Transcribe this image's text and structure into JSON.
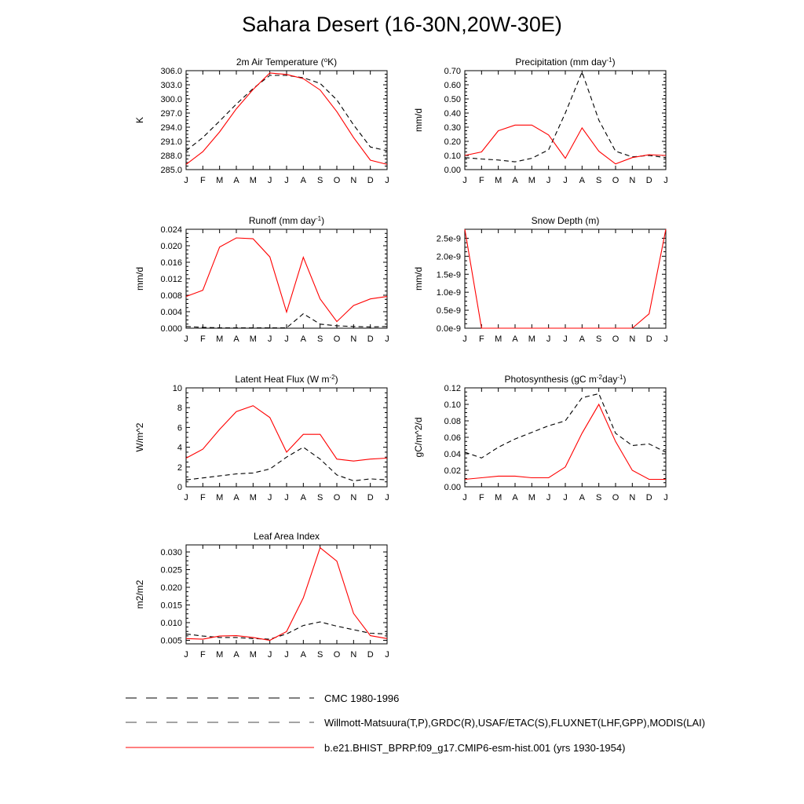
{
  "title": "Sahara Desert (16-30N,20W-30E)",
  "months": [
    "J",
    "F",
    "M",
    "A",
    "M",
    "J",
    "J",
    "A",
    "S",
    "O",
    "N",
    "D",
    "J"
  ],
  "colors": {
    "model": "#ff0000",
    "obs": "#000000",
    "obs2": "#4a4a4a"
  },
  "legend": [
    {
      "label": "CMC 1980-1996",
      "style": "dashed",
      "color": "#000000"
    },
    {
      "label": "Willmott-Matsuura(T,P),GRDC(R),USAF/ETAC(S),FLUXNET(LHF,GPP),MODIS(LAI)",
      "style": "dashed",
      "color": "#4a4a4a"
    },
    {
      "label": "b.e21.BHIST_BPRP.f09_g17.CMIP6-esm-hist.001 (yrs 1930-1954)",
      "style": "solid",
      "color": "#ff0000"
    }
  ],
  "chart_data": [
    {
      "type": "line",
      "title": "2m Air Temperature (°K)",
      "title_main": "2m Air Temperature (",
      "title_sup": "o",
      "title_end": "K)",
      "ylabel": "K",
      "ylim": [
        285,
        306
      ],
      "yticks": [
        "285.0",
        "288.0",
        "291.0",
        "294.0",
        "297.0",
        "300.0",
        "303.0",
        "306.0"
      ],
      "yvals": [
        285,
        288,
        291,
        294,
        297,
        300,
        303,
        306
      ],
      "series": [
        {
          "style": "dashed",
          "color": "#000000",
          "values": [
            289.0,
            291.8,
            295.3,
            298.9,
            302.2,
            305.0,
            305.0,
            304.5,
            303.3,
            299.8,
            294.5,
            289.8,
            289.0
          ]
        },
        {
          "style": "solid",
          "color": "#ff0000",
          "values": [
            286.1,
            288.8,
            293.0,
            297.9,
            302.0,
            305.5,
            305.2,
            304.3,
            301.9,
            297.3,
            291.8,
            287.0,
            286.1
          ]
        }
      ]
    },
    {
      "type": "line",
      "title": "Precipitation (mm day-1)",
      "title_main": "Precipitation (mm day",
      "title_sup": "-1",
      "title_end": ")",
      "ylabel": "mm/d",
      "ylim": [
        0,
        0.7
      ],
      "yticks": [
        "0.00",
        "0.10",
        "0.20",
        "0.30",
        "0.40",
        "0.50",
        "0.60",
        "0.70"
      ],
      "yvals": [
        0,
        0.1,
        0.2,
        0.3,
        0.4,
        0.5,
        0.6,
        0.7
      ],
      "series": [
        {
          "style": "dashed",
          "color": "#000000",
          "values": [
            0.085,
            0.075,
            0.068,
            0.055,
            0.08,
            0.14,
            0.4,
            0.69,
            0.35,
            0.13,
            0.09,
            0.1,
            0.085
          ]
        },
        {
          "style": "solid",
          "color": "#ff0000",
          "values": [
            0.1,
            0.125,
            0.275,
            0.315,
            0.315,
            0.245,
            0.08,
            0.295,
            0.13,
            0.04,
            0.085,
            0.105,
            0.1
          ]
        }
      ]
    },
    {
      "type": "line",
      "title": "Runoff (mm day-1)",
      "title_main": "Runoff (mm day",
      "title_sup": "-1",
      "title_end": ")",
      "ylabel": "mm/d",
      "ylim": [
        0,
        0.024
      ],
      "yticks": [
        "0.000",
        "0.004",
        "0.008",
        "0.012",
        "0.016",
        "0.020",
        "0.024"
      ],
      "yvals": [
        0,
        0.004,
        0.008,
        0.012,
        0.016,
        0.02,
        0.024
      ],
      "series": [
        {
          "style": "dashed",
          "color": "#000000",
          "values": [
            0.0004,
            0.0002,
            0.0001,
            0.0001,
            0.0001,
            0.0001,
            0.0001,
            0.0035,
            0.001,
            0.0006,
            0.0004,
            0.0003,
            0.0004
          ]
        },
        {
          "style": "solid",
          "color": "#ff0000",
          "values": [
            0.0077,
            0.0092,
            0.0197,
            0.0219,
            0.0217,
            0.0173,
            0.0039,
            0.0172,
            0.0071,
            0.0016,
            0.0055,
            0.0071,
            0.0077
          ]
        }
      ]
    },
    {
      "type": "line",
      "title": "Snow Depth (m)",
      "title_main": "Snow Depth (m)",
      "title_sup": "",
      "title_end": "",
      "ylabel": "mm/d",
      "ylim": [
        0,
        2.75e-09
      ],
      "yticks": [
        "0.0e-9",
        "0.5e-9",
        "1.0e-9",
        "1.5e-9",
        "2.0e-9",
        "2.5e-9"
      ],
      "yvals": [
        0,
        5e-10,
        1e-09,
        1.5e-09,
        2e-09,
        2.5e-09
      ],
      "series": [
        {
          "style": "dashed",
          "color": "#000000",
          "values": [
            0,
            0,
            0,
            0,
            0,
            0,
            0,
            0,
            0,
            0,
            0,
            0,
            0
          ]
        },
        {
          "style": "solid",
          "color": "#ff0000",
          "values": [
            2.75e-09,
            0,
            0,
            0,
            0,
            0,
            0,
            0,
            0,
            0,
            0,
            4e-10,
            2.75e-09
          ]
        }
      ]
    },
    {
      "type": "line",
      "title": "Latent Heat Flux (W m-2)",
      "title_main": "Latent Heat Flux (W m",
      "title_sup": "-2",
      "title_end": ")",
      "ylabel": "W/m^2",
      "ylim": [
        0,
        10
      ],
      "yticks": [
        "0",
        "2",
        "4",
        "6",
        "8",
        "10"
      ],
      "yvals": [
        0,
        2,
        4,
        6,
        8,
        10
      ],
      "series": [
        {
          "style": "dashed",
          "color": "#000000",
          "values": [
            0.7,
            0.9,
            1.1,
            1.3,
            1.4,
            1.8,
            3.0,
            4.0,
            2.8,
            1.2,
            0.6,
            0.8,
            0.7
          ]
        },
        {
          "style": "solid",
          "color": "#ff0000",
          "values": [
            2.9,
            3.8,
            5.8,
            7.6,
            8.2,
            7.0,
            3.5,
            5.3,
            5.3,
            2.8,
            2.6,
            2.8,
            2.9
          ]
        }
      ]
    },
    {
      "type": "line",
      "title": "Photosynthesis (gC m-2day-1)",
      "title_main": "Photosynthesis (gC m",
      "title_sup": "-2",
      "title_end": "day",
      "title_sup2": "-1",
      "title_end2": ")",
      "ylabel": "gC/m^2/d",
      "ylim": [
        0,
        0.12
      ],
      "yticks": [
        "0.00",
        "0.02",
        "0.04",
        "0.06",
        "0.08",
        "0.10",
        "0.12"
      ],
      "yvals": [
        0,
        0.02,
        0.04,
        0.06,
        0.08,
        0.1,
        0.12
      ],
      "series": [
        {
          "style": "dashed",
          "color": "#000000",
          "values": [
            0.042,
            0.035,
            0.048,
            0.058,
            0.066,
            0.074,
            0.08,
            0.108,
            0.113,
            0.065,
            0.05,
            0.052,
            0.042
          ]
        },
        {
          "style": "solid",
          "color": "#ff0000",
          "values": [
            0.009,
            0.011,
            0.013,
            0.013,
            0.011,
            0.011,
            0.024,
            0.065,
            0.1,
            0.055,
            0.02,
            0.009,
            0.009
          ]
        }
      ]
    },
    {
      "type": "line",
      "title": "Leaf Area Index",
      "title_main": "Leaf Area Index",
      "title_sup": "",
      "title_end": "",
      "ylabel": "m2/m2",
      "ylim": [
        0.004,
        0.032
      ],
      "yticks": [
        "0.005",
        "0.010",
        "0.015",
        "0.020",
        "0.025",
        "0.030"
      ],
      "yvals": [
        0.005,
        0.01,
        0.015,
        0.02,
        0.025,
        0.03
      ],
      "series": [
        {
          "style": "dashed",
          "color": "#000000",
          "values": [
            0.0068,
            0.0062,
            0.0058,
            0.0058,
            0.0055,
            0.0053,
            0.0068,
            0.0092,
            0.0102,
            0.009,
            0.008,
            0.007,
            0.0068
          ]
        },
        {
          "style": "solid",
          "color": "#ff0000",
          "values": [
            0.0055,
            0.0053,
            0.0062,
            0.0063,
            0.0058,
            0.005,
            0.0075,
            0.017,
            0.0312,
            0.0274,
            0.0126,
            0.0063,
            0.0055
          ]
        }
      ]
    }
  ]
}
